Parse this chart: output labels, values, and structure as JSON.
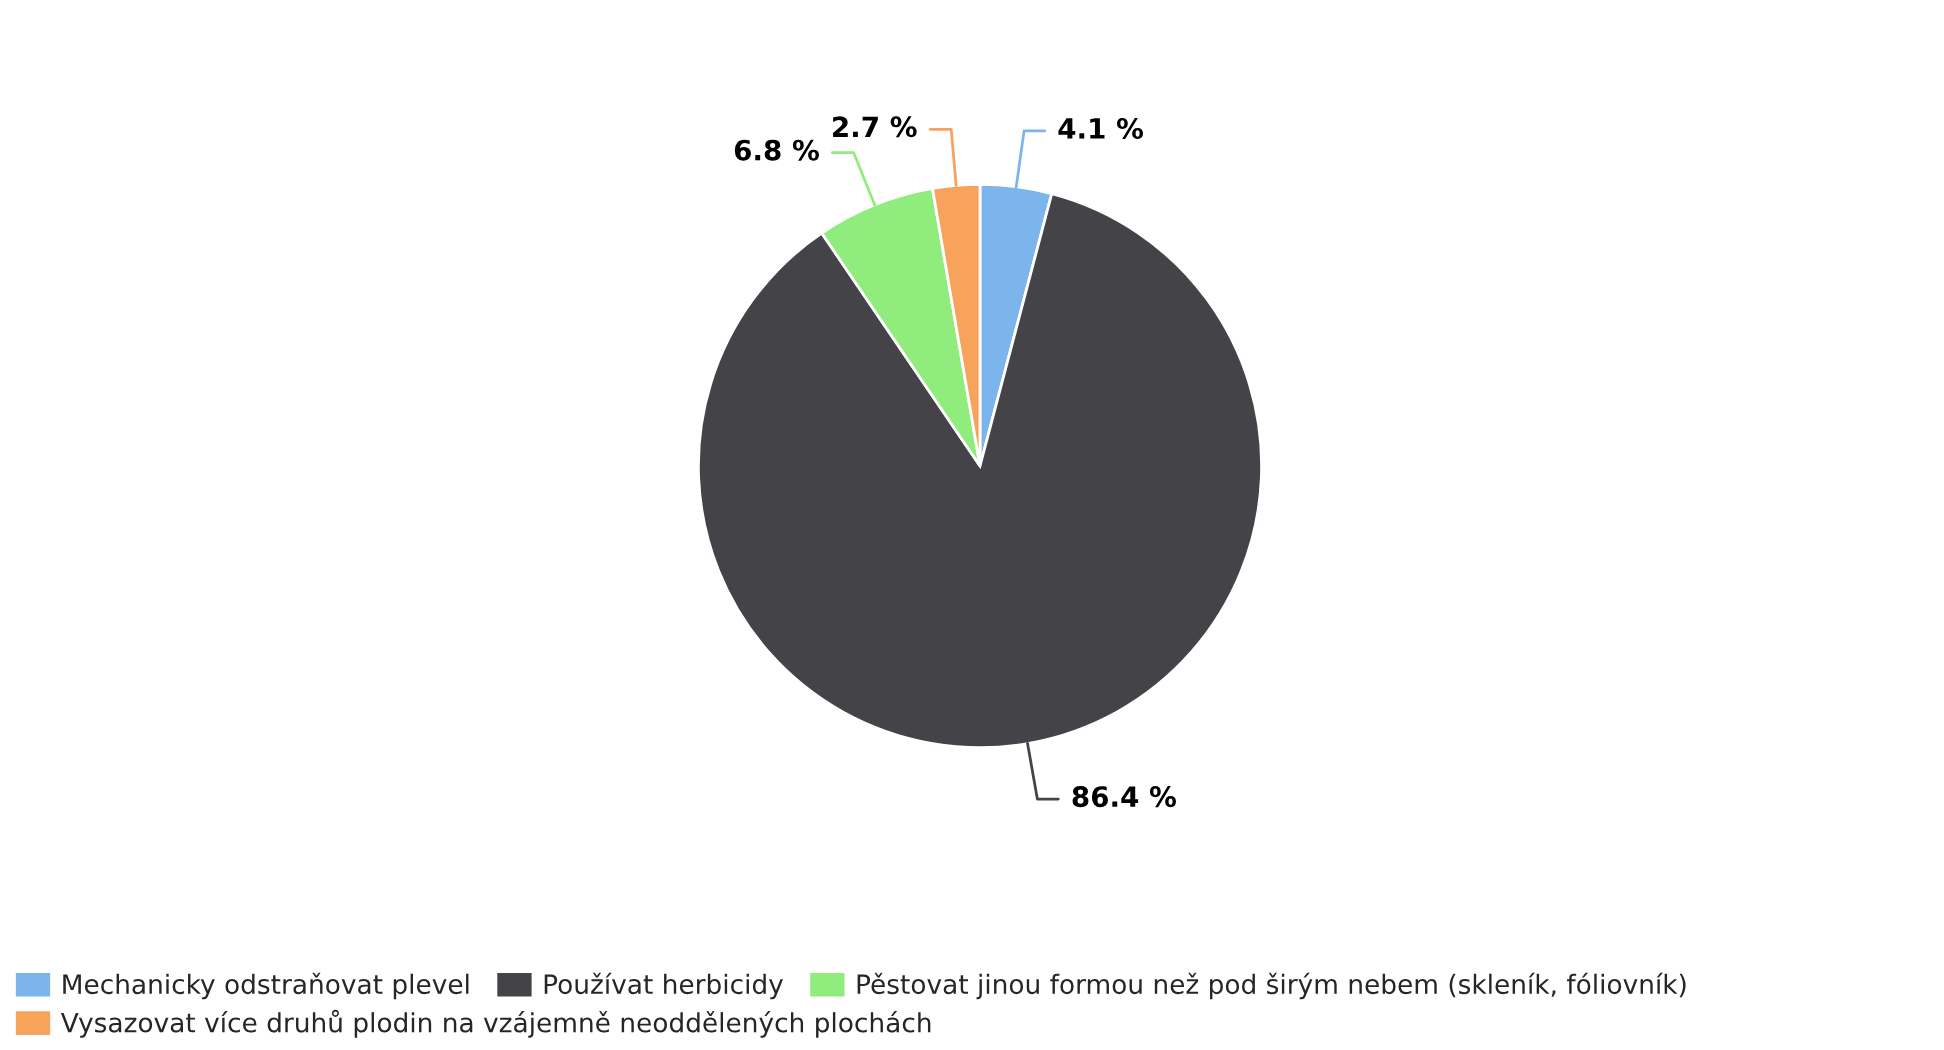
{
  "chart_data": {
    "type": "pie",
    "categories": [
      "Mechanicky odstraňovat plevel",
      "Používat herbicidy",
      "Pěstovat jinou formou než pod širým nebem (skleník, fóliovník)",
      "Vysazovat více druhů plodin na vzájemně neoddělených plochách"
    ],
    "values": [
      4.1,
      86.4,
      6.8,
      2.7
    ],
    "colors": [
      "#7cb5ec",
      "#434348",
      "#90ed7d",
      "#f7a35c"
    ],
    "value_labels": [
      "4.1 %",
      "86.4 %",
      "6.8 %",
      "2.7 %"
    ],
    "legend": "bottom"
  }
}
